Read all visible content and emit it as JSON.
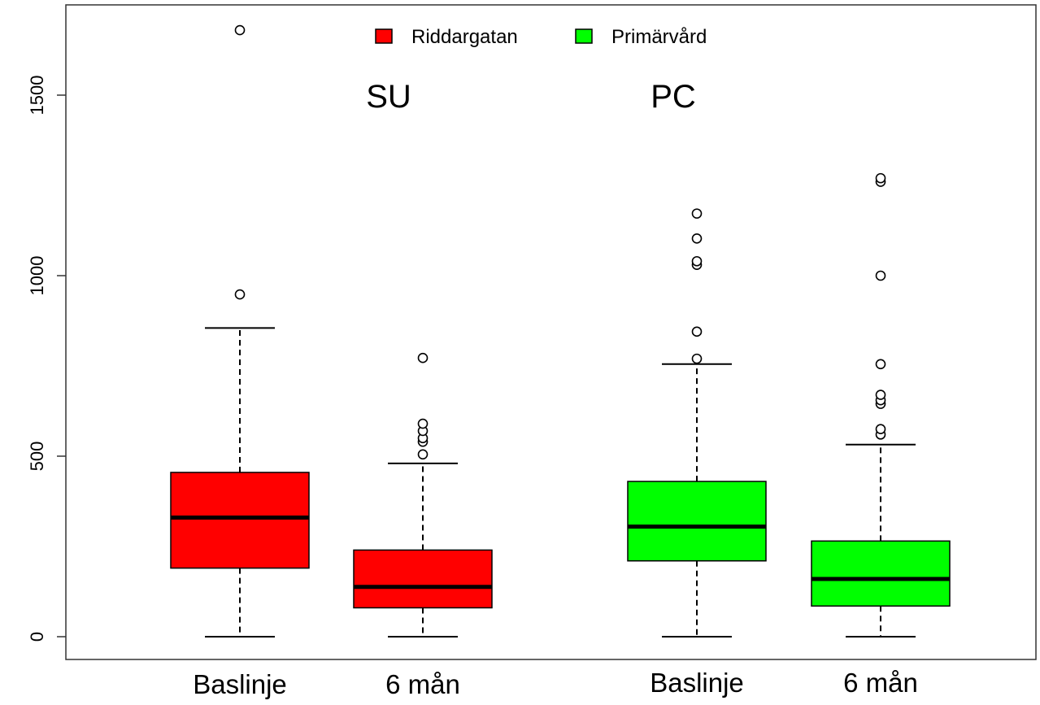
{
  "chart_data": {
    "type": "box",
    "categories": [
      "Baslinje",
      "6 mån",
      "Baslinje",
      "6 mån"
    ],
    "group_labels": [
      "SU",
      "PC"
    ],
    "legend": [
      {
        "name": "Riddargatan",
        "color": "#ff0000"
      },
      {
        "name": "Primärvård",
        "color": "#00ff00"
      }
    ],
    "legend_position": "top",
    "ylim": [
      -60,
      1740
    ],
    "yticks": [
      0,
      500,
      1000,
      1500
    ],
    "grid": false,
    "boxes": [
      {
        "category": "Baslinje",
        "group": "SU",
        "color": "#ff0000",
        "whisker_low": 0,
        "q1": 190,
        "median": 330,
        "q3": 455,
        "whisker_high": 855,
        "outliers": [
          948,
          1680
        ]
      },
      {
        "category": "6 mån",
        "group": "SU",
        "color": "#ff0000",
        "whisker_low": 0,
        "q1": 80,
        "median": 138,
        "q3": 240,
        "whisker_high": 480,
        "outliers": [
          505,
          540,
          550,
          570,
          590,
          772
        ]
      },
      {
        "category": "Baslinje",
        "group": "PC",
        "color": "#00ff00",
        "whisker_low": 0,
        "q1": 210,
        "median": 305,
        "q3": 430,
        "whisker_high": 755,
        "outliers": [
          770,
          845,
          1030,
          1040,
          1103,
          1172
        ]
      },
      {
        "category": "6 mån",
        "group": "PC",
        "color": "#00ff00",
        "whisker_low": 0,
        "q1": 85,
        "median": 160,
        "q3": 265,
        "whisker_high": 532,
        "outliers": [
          560,
          575,
          645,
          655,
          670,
          755,
          1000,
          1260,
          1270
        ]
      }
    ]
  }
}
